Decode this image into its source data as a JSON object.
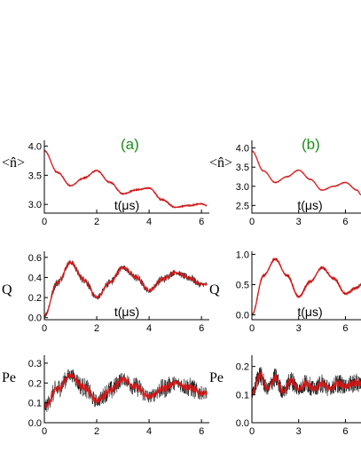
{
  "panel_labels": {
    "a": "(a)",
    "b": "(b)",
    "color": "#1a8f1a"
  },
  "trace_colors": {
    "dark": "#1a1a1a",
    "red": "#e01010"
  },
  "chart_data": [
    {
      "id": "a1",
      "type": "line",
      "column": "a",
      "row": 1,
      "ylabel": "<n̂>",
      "xlabel": "t(μs)",
      "xlim": [
        0,
        6.3
      ],
      "ylim": [
        2.85,
        4.1
      ],
      "xticks": [
        0,
        2,
        4,
        6
      ],
      "yticks": [
        3.0,
        3.5,
        4.0
      ],
      "ytick_labels": [
        "3.0",
        "3.5",
        "4.0"
      ],
      "series": [
        {
          "x": [
            0,
            0.5,
            1.0,
            1.5,
            2.0,
            2.5,
            3.0,
            3.5,
            4.0,
            4.5,
            5.0,
            5.5,
            6.0,
            6.2
          ],
          "y": [
            3.92,
            3.55,
            3.32,
            3.45,
            3.58,
            3.38,
            3.18,
            3.25,
            3.28,
            3.08,
            2.95,
            2.98,
            3.01,
            2.98
          ]
        }
      ],
      "noise": 0.02
    },
    {
      "id": "a2",
      "type": "line",
      "column": "a",
      "row": 2,
      "ylabel": "Q",
      "xlabel": "t(μs)",
      "xlim": [
        0,
        6.3
      ],
      "ylim": [
        -0.02,
        0.66
      ],
      "xticks": [
        0,
        2,
        4,
        6
      ],
      "yticks": [
        0.0,
        0.2,
        0.4,
        0.6
      ],
      "ytick_labels": [
        "0.0",
        "0.2",
        "0.4",
        "0.6"
      ],
      "series": [
        {
          "x": [
            0,
            0.5,
            1.0,
            1.5,
            2.0,
            2.5,
            3.0,
            3.5,
            4.0,
            4.5,
            5.0,
            5.5,
            6.0,
            6.2
          ],
          "y": [
            0.02,
            0.35,
            0.55,
            0.38,
            0.2,
            0.35,
            0.5,
            0.4,
            0.27,
            0.38,
            0.45,
            0.4,
            0.33,
            0.33
          ]
        }
      ],
      "noise": 0.04
    },
    {
      "id": "a3",
      "type": "line",
      "column": "a",
      "row": 3,
      "ylabel": "Pe",
      "xlabel": "",
      "xlim": [
        0,
        6.3
      ],
      "ylim": [
        0.0,
        0.34
      ],
      "xticks": [
        0,
        2,
        4,
        6
      ],
      "yticks": [
        0.0,
        0.1,
        0.2,
        0.3
      ],
      "ytick_labels": [
        "0.0",
        "0.1",
        "0.2",
        "0.3"
      ],
      "series": [
        {
          "x": [
            0,
            0.5,
            1.0,
            1.5,
            2.0,
            2.5,
            3.0,
            3.5,
            4.0,
            4.5,
            5.0,
            5.5,
            6.0,
            6.2
          ],
          "y": [
            0.08,
            0.17,
            0.24,
            0.18,
            0.11,
            0.16,
            0.22,
            0.18,
            0.13,
            0.17,
            0.2,
            0.18,
            0.15,
            0.15
          ]
        }
      ],
      "noise": 0.05
    },
    {
      "id": "b1",
      "type": "line",
      "column": "b",
      "row": 1,
      "ylabel": "<n̂>",
      "xlabel": "t(μs)",
      "xlim": [
        0,
        7
      ],
      "ylim": [
        2.3,
        4.2
      ],
      "xticks": [
        0,
        3,
        6
      ],
      "yticks": [
        2.5,
        3.0,
        3.5,
        4.0
      ],
      "ytick_labels": [
        "2.5",
        "3.0",
        "3.5",
        "4.0"
      ],
      "series": [
        {
          "x": [
            0,
            0.75,
            1.5,
            2.25,
            3.0,
            3.75,
            4.5,
            5.25,
            6.0,
            6.75,
            7.0
          ],
          "y": [
            3.92,
            3.4,
            3.1,
            3.25,
            3.42,
            3.18,
            2.9,
            3.0,
            3.1,
            2.9,
            2.78
          ]
        }
      ],
      "noise": 0.01
    },
    {
      "id": "b2",
      "type": "line",
      "column": "b",
      "row": 2,
      "ylabel": "Q",
      "xlabel": "t(μs)",
      "xlim": [
        0,
        7
      ],
      "ylim": [
        -0.08,
        1.05
      ],
      "xticks": [
        0,
        3,
        6
      ],
      "yticks": [
        0.0,
        0.5,
        1.0
      ],
      "ytick_labels": [
        "0.0",
        "0.5",
        "1.0"
      ],
      "series": [
        {
          "x": [
            0,
            0.75,
            1.5,
            2.25,
            3.0,
            3.75,
            4.5,
            5.25,
            6.0,
            6.75,
            7.0
          ],
          "y": [
            0.0,
            0.65,
            0.92,
            0.65,
            0.3,
            0.55,
            0.78,
            0.6,
            0.35,
            0.45,
            0.5
          ]
        }
      ],
      "noise": 0.025
    },
    {
      "id": "b3",
      "type": "line",
      "column": "b",
      "row": 3,
      "ylabel": "Pe",
      "xlabel": "",
      "xlim": [
        0,
        7
      ],
      "ylim": [
        0.0,
        0.24
      ],
      "xticks": [
        0,
        3,
        6
      ],
      "yticks": [
        0.0,
        0.1,
        0.2
      ],
      "ytick_labels": [
        "0.0",
        "0.1",
        "0.2"
      ],
      "series": [
        {
          "x": [
            0,
            0.5,
            1.0,
            1.5,
            2.0,
            2.5,
            3.0,
            3.5,
            4.0,
            4.5,
            5.0,
            5.5,
            6.0,
            6.5,
            7.0
          ],
          "y": [
            0.1,
            0.17,
            0.12,
            0.16,
            0.11,
            0.15,
            0.12,
            0.14,
            0.12,
            0.14,
            0.12,
            0.14,
            0.13,
            0.14,
            0.14
          ]
        }
      ],
      "noise": 0.035
    }
  ]
}
